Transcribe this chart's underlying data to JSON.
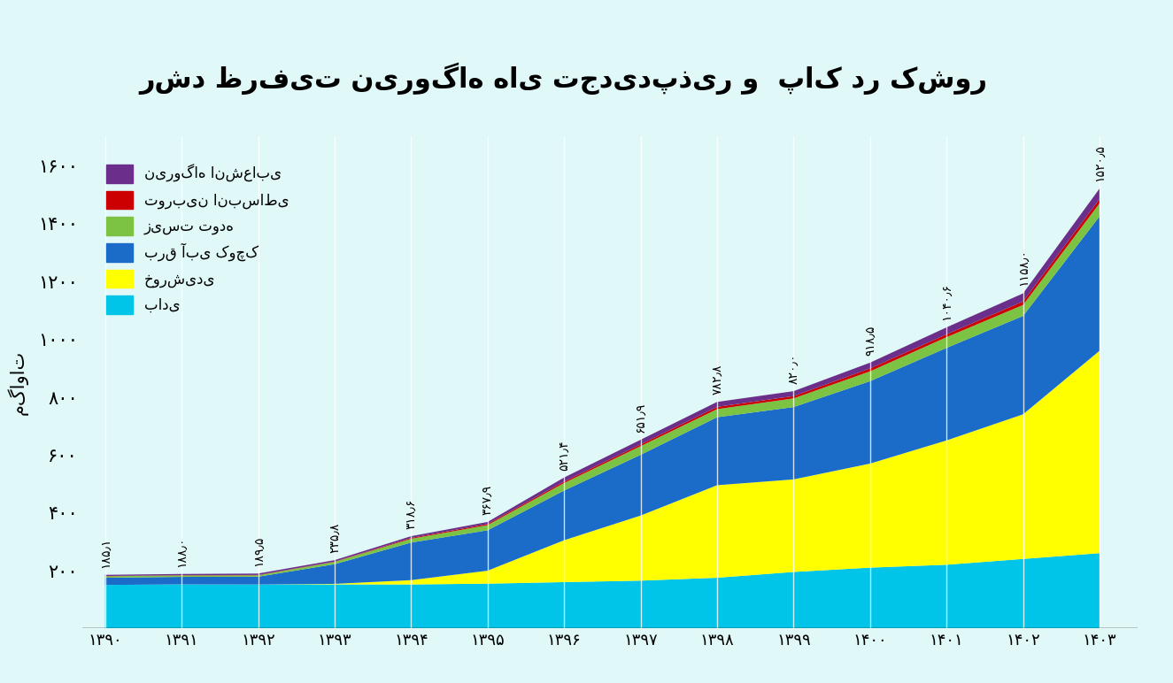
{
  "years": [
    1390,
    1391,
    1392,
    1393,
    1394,
    1395,
    1396,
    1397,
    1398,
    1399,
    1400,
    1401,
    1402,
    1403
  ],
  "totals": [
    185.1,
    188.0,
    189.5,
    235.8,
    318.6,
    367.9,
    521.4,
    651.9,
    782.8,
    820.0,
    918.5,
    1040.6,
    1158.0,
    1520.5
  ],
  "wind": [
    150,
    152,
    152,
    152,
    152,
    155,
    160,
    165,
    175,
    195,
    210,
    220,
    240,
    260
  ],
  "solar": [
    0,
    0,
    0,
    2,
    15,
    45,
    145,
    225,
    320,
    320,
    360,
    430,
    500,
    700
  ],
  "small_hydro": [
    25,
    26,
    27,
    68,
    130,
    140,
    172,
    210,
    235,
    250,
    285,
    320,
    340,
    465
  ],
  "biomass": [
    5,
    5,
    5,
    8,
    13,
    18,
    26,
    30,
    28,
    30,
    34,
    37,
    38,
    45
  ],
  "orc": [
    1,
    1,
    1,
    1,
    3,
    4,
    5,
    6,
    8,
    8,
    10,
    10,
    12,
    15
  ],
  "nuclear": [
    4,
    4,
    5,
    5,
    6,
    7,
    14,
    16,
    17,
    17,
    20,
    24,
    28,
    36
  ],
  "title": "رشد ظرفیت نیروگاه های تجدیدپذیر و  پاک در کشور",
  "ylabel": "مگاوات",
  "legend_nuclear": "نیروگاه انشعابی",
  "legend_orc": "توربین انبساطی",
  "legend_biomass": "زیست توده",
  "legend_small_hydro": "برق آبی کوچک",
  "legend_solar": "خورشیدی",
  "legend_wind": "بادی",
  "color_nuclear": "#6B2E8A",
  "color_orc": "#CC0000",
  "color_biomass": "#7CC243",
  "color_small_hydro": "#1A6CC8",
  "color_solar": "#FFFF00",
  "color_wind": "#00C5E8",
  "bg_color": "#E0F8F8",
  "ylim": [
    0,
    1700
  ],
  "yticks": [
    200,
    400,
    600,
    800,
    1000,
    1200,
    1400,
    1600
  ]
}
